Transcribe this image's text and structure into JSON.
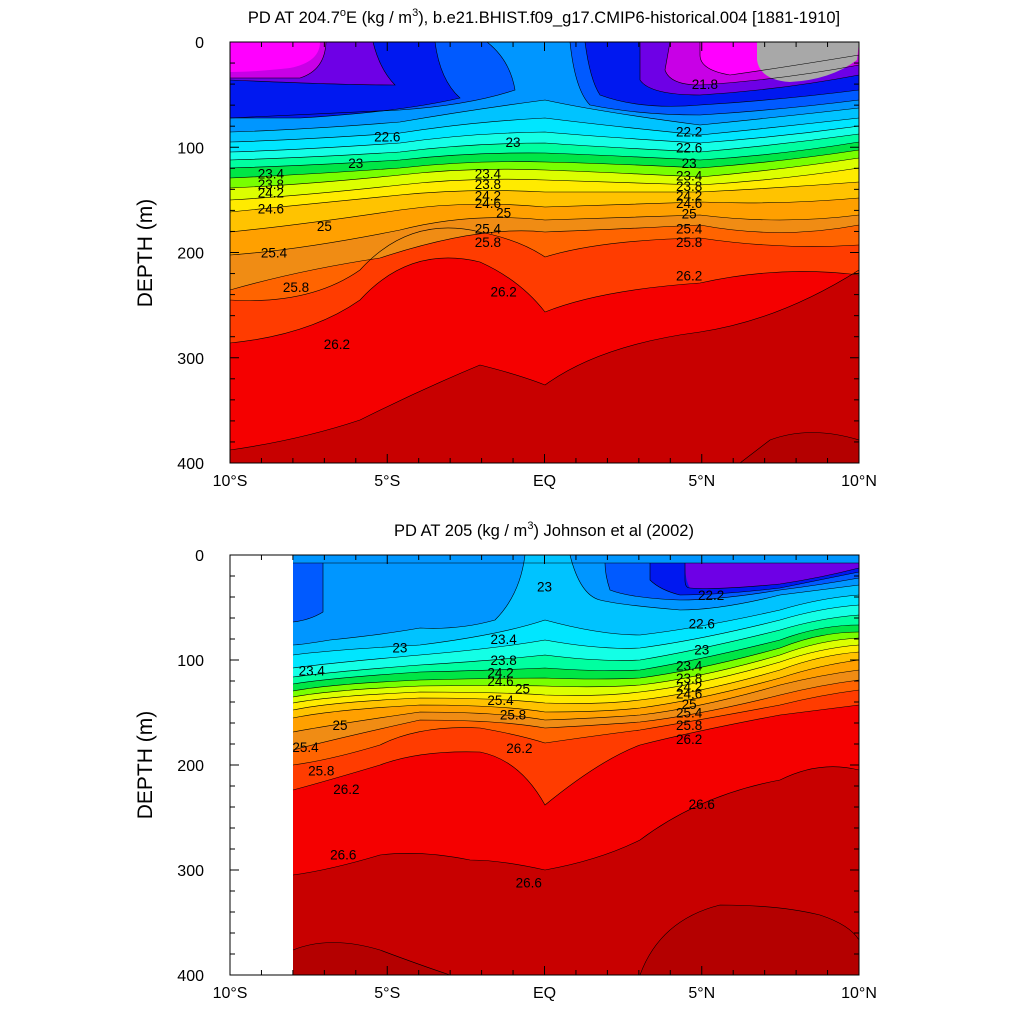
{
  "chart_data": [
    {
      "type": "contour",
      "title_parts": [
        "PD AT 204.7",
        "o",
        "E (kg / m",
        "3",
        "), b.e21.BHIST.f09_g17.CMIP6-historical.004 [1881-1910]"
      ],
      "ylabel": "DEPTH (m)",
      "x_tick_labels": [
        "10°S",
        "5°S",
        "EQ",
        "5°N",
        "10°N"
      ],
      "y_tick_labels": [
        "0",
        "100",
        "200",
        "300",
        "400"
      ],
      "xlim": [
        -10,
        10
      ],
      "ylim": [
        400,
        0
      ],
      "x_ticks": [
        -10,
        -5,
        0,
        5,
        10
      ],
      "y_ticks": [
        0,
        100,
        200,
        300,
        400
      ],
      "contour_levels": [
        21.8,
        22.2,
        22.6,
        23,
        23.4,
        23.8,
        24.2,
        24.6,
        25,
        25.4,
        25.8,
        26.2,
        26.6
      ],
      "contour_labels": [
        {
          "text": "21.8",
          "x": 5.1,
          "y": 40
        },
        {
          "text": "22.2",
          "x": 4.6,
          "y": 85
        },
        {
          "text": "22.6",
          "x": -5.0,
          "y": 90
        },
        {
          "text": "22.6",
          "x": 4.6,
          "y": 100
        },
        {
          "text": "23",
          "x": -6.0,
          "y": 115
        },
        {
          "text": "23",
          "x": -1.0,
          "y": 95
        },
        {
          "text": "23",
          "x": 4.6,
          "y": 115
        },
        {
          "text": "23.4",
          "x": -8.7,
          "y": 125
        },
        {
          "text": "23.4",
          "x": -1.8,
          "y": 125
        },
        {
          "text": "23.4",
          "x": 4.6,
          "y": 127
        },
        {
          "text": "23.8",
          "x": -8.7,
          "y": 135
        },
        {
          "text": "23.8",
          "x": -1.8,
          "y": 135
        },
        {
          "text": "23.8",
          "x": 4.6,
          "y": 137
        },
        {
          "text": "24.2",
          "x": -8.7,
          "y": 143
        },
        {
          "text": "24.2",
          "x": -1.8,
          "y": 146
        },
        {
          "text": "24.2",
          "x": 4.6,
          "y": 146
        },
        {
          "text": "24.6",
          "x": -8.7,
          "y": 158
        },
        {
          "text": "24.6",
          "x": -1.8,
          "y": 153
        },
        {
          "text": "24.6",
          "x": 4.6,
          "y": 153
        },
        {
          "text": "25",
          "x": -7.0,
          "y": 175
        },
        {
          "text": "25",
          "x": -1.3,
          "y": 162
        },
        {
          "text": "25",
          "x": 4.6,
          "y": 163
        },
        {
          "text": "25.4",
          "x": -8.6,
          "y": 200
        },
        {
          "text": "25.4",
          "x": -1.8,
          "y": 177
        },
        {
          "text": "25.4",
          "x": 4.6,
          "y": 177
        },
        {
          "text": "25.8",
          "x": -7.9,
          "y": 233
        },
        {
          "text": "25.8",
          "x": -1.8,
          "y": 190
        },
        {
          "text": "25.8",
          "x": 4.6,
          "y": 190
        },
        {
          "text": "26.2",
          "x": -6.6,
          "y": 287
        },
        {
          "text": "26.2",
          "x": -1.3,
          "y": 237
        },
        {
          "text": "26.2",
          "x": 4.6,
          "y": 222
        }
      ],
      "fill_colors": [
        "#ff00ff",
        "#c800e6",
        "#6e00e6",
        "#0018f0",
        "#005aff",
        "#0096ff",
        "#00c3ff",
        "#00e6ff",
        "#14ffe6",
        "#00ffa0",
        "#00e646",
        "#78ff00",
        "#dcff00",
        "#ffeb00",
        "#ffc300",
        "#ffa000",
        "#f08c14",
        "#ff6400",
        "#ff3c00",
        "#f50000",
        "#c80000"
      ],
      "missing_color": "#a8a8a8"
    },
    {
      "type": "contour",
      "title_parts": [
        "PD AT 205 (kg / m",
        "3",
        ") Johnson et al (2002)"
      ],
      "ylabel": "DEPTH (m)",
      "x_tick_labels": [
        "10°S",
        "5°S",
        "EQ",
        "5°N",
        "10°N"
      ],
      "y_tick_labels": [
        "0",
        "100",
        "200",
        "300",
        "400"
      ],
      "xlim": [
        -10,
        10
      ],
      "ylim": [
        400,
        0
      ],
      "data_xlim": [
        -8,
        10
      ],
      "contour_levels": [
        22.2,
        22.6,
        23,
        23.4,
        23.8,
        24.2,
        24.6,
        25,
        25.4,
        25.8,
        26.2,
        26.6
      ],
      "contour_labels": [
        {
          "text": "22.2",
          "x": 5.3,
          "y": 38
        },
        {
          "text": "22.6",
          "x": 5.0,
          "y": 65
        },
        {
          "text": "23",
          "x": 0.0,
          "y": 30
        },
        {
          "text": "23",
          "x": -4.6,
          "y": 88
        },
        {
          "text": "23",
          "x": 5.0,
          "y": 90
        },
        {
          "text": "23.4",
          "x": -1.3,
          "y": 80
        },
        {
          "text": "23.4",
          "x": -7.4,
          "y": 110
        },
        {
          "text": "23.4",
          "x": 4.6,
          "y": 105
        },
        {
          "text": "23.8",
          "x": -1.3,
          "y": 100
        },
        {
          "text": "23.8",
          "x": 4.6,
          "y": 117
        },
        {
          "text": "24.2",
          "x": -1.4,
          "y": 112
        },
        {
          "text": "24.2",
          "x": 4.6,
          "y": 125
        },
        {
          "text": "24.6",
          "x": -1.4,
          "y": 120
        },
        {
          "text": "24.6",
          "x": 4.6,
          "y": 132
        },
        {
          "text": "25",
          "x": -0.7,
          "y": 127
        },
        {
          "text": "25",
          "x": 4.6,
          "y": 142
        },
        {
          "text": "25.4",
          "x": -1.4,
          "y": 138
        },
        {
          "text": "25.4",
          "x": 4.6,
          "y": 150
        },
        {
          "text": "25.8",
          "x": -1.0,
          "y": 152
        },
        {
          "text": "25.8",
          "x": 4.6,
          "y": 162
        },
        {
          "text": "25",
          "x": -6.5,
          "y": 162
        },
        {
          "text": "25.4",
          "x": -7.6,
          "y": 183
        },
        {
          "text": "25.8",
          "x": -7.1,
          "y": 205
        },
        {
          "text": "26.2",
          "x": -6.3,
          "y": 223
        },
        {
          "text": "26.2",
          "x": -0.8,
          "y": 184
        },
        {
          "text": "26.2",
          "x": 4.6,
          "y": 175
        },
        {
          "text": "26.6",
          "x": -6.4,
          "y": 285
        },
        {
          "text": "26.6",
          "x": 5.0,
          "y": 237
        },
        {
          "text": "26.6",
          "x": -0.5,
          "y": 312
        }
      ]
    }
  ]
}
